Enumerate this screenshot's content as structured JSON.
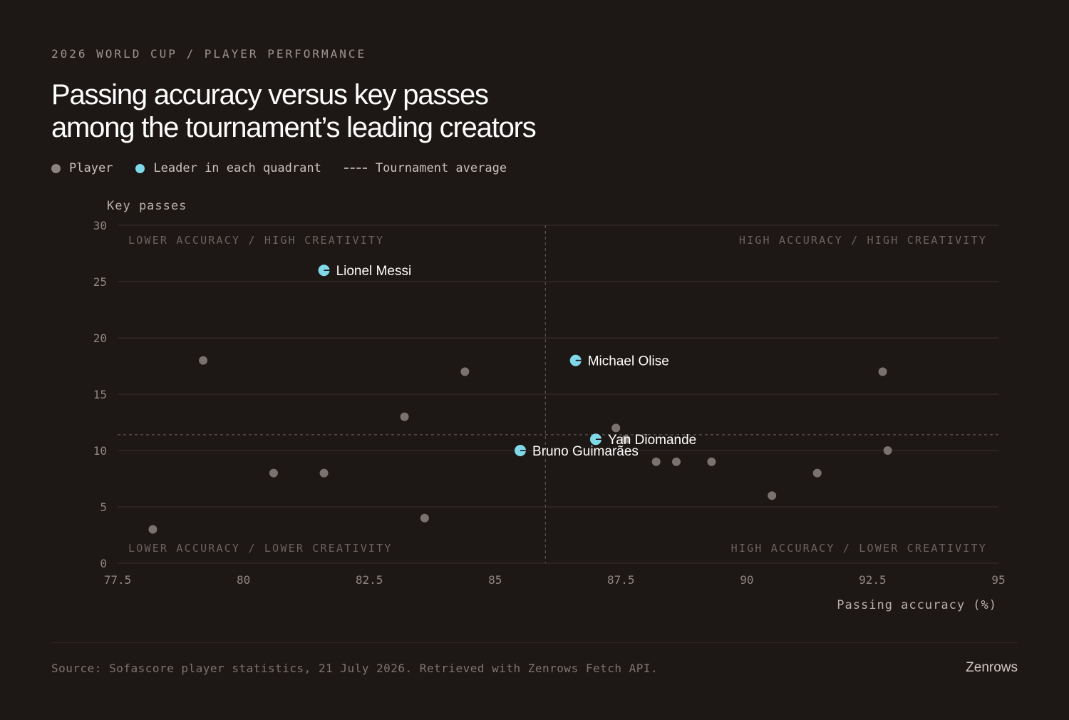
{
  "header": {
    "kicker": "2026 WORLD CUP / PLAYER PERFORMANCE",
    "title_line1": "Passing accuracy versus key passes",
    "title_line2": "among the tournament’s leading creators"
  },
  "legend": {
    "player": "Player",
    "leader": "Leader in each quadrant",
    "average": "Tournament average"
  },
  "colors": {
    "background": "#1d1715",
    "player_point": "#7a726e",
    "leader_point": "#7fd9e8",
    "grid": "#3a322e",
    "average_line": "#5a524e"
  },
  "footer": {
    "source": "Source: Sofascore player statistics, 21 July 2026. Retrieved with Zenrows Fetch API.",
    "brand": "Zenrows"
  },
  "chart_data": {
    "type": "scatter",
    "xlabel": "Passing accuracy (%)",
    "ylabel": "Key passes",
    "xlim": [
      77.5,
      95
    ],
    "ylim": [
      0,
      30
    ],
    "xticks": [
      77.5,
      80,
      82.5,
      85,
      87.5,
      90,
      92.5,
      95
    ],
    "yticks": [
      0,
      5,
      10,
      15,
      20,
      25,
      30
    ],
    "grid": "horizontal",
    "average": {
      "x": 86.0,
      "y": 11.4
    },
    "quadrant_labels": {
      "top_left": "LOWER ACCURACY / HIGH CREATIVITY",
      "top_right": "HIGH ACCURACY / HIGH CREATIVITY",
      "bottom_left": "LOWER ACCURACY / LOWER CREATIVITY",
      "bottom_right": "HIGH ACCURACY / LOWER CREATIVITY"
    },
    "players": [
      {
        "x": 78.2,
        "y": 3
      },
      {
        "x": 79.2,
        "y": 18
      },
      {
        "x": 80.6,
        "y": 8
      },
      {
        "x": 81.6,
        "y": 8
      },
      {
        "x": 83.2,
        "y": 13
      },
      {
        "x": 83.6,
        "y": 4
      },
      {
        "x": 84.4,
        "y": 17
      },
      {
        "x": 87.4,
        "y": 12
      },
      {
        "x": 87.6,
        "y": 11
      },
      {
        "x": 88.2,
        "y": 9
      },
      {
        "x": 88.6,
        "y": 9
      },
      {
        "x": 89.3,
        "y": 9
      },
      {
        "x": 90.5,
        "y": 6
      },
      {
        "x": 91.4,
        "y": 8
      },
      {
        "x": 92.7,
        "y": 17
      },
      {
        "x": 92.8,
        "y": 10
      }
    ],
    "leaders": [
      {
        "name": "Lionel Messi",
        "x": 81.6,
        "y": 26
      },
      {
        "name": "Michael Olise",
        "x": 86.6,
        "y": 18
      },
      {
        "name": "Yan Diomande",
        "x": 87.0,
        "y": 11
      },
      {
        "name": "Bruno Guimarães",
        "x": 85.5,
        "y": 10
      }
    ]
  }
}
